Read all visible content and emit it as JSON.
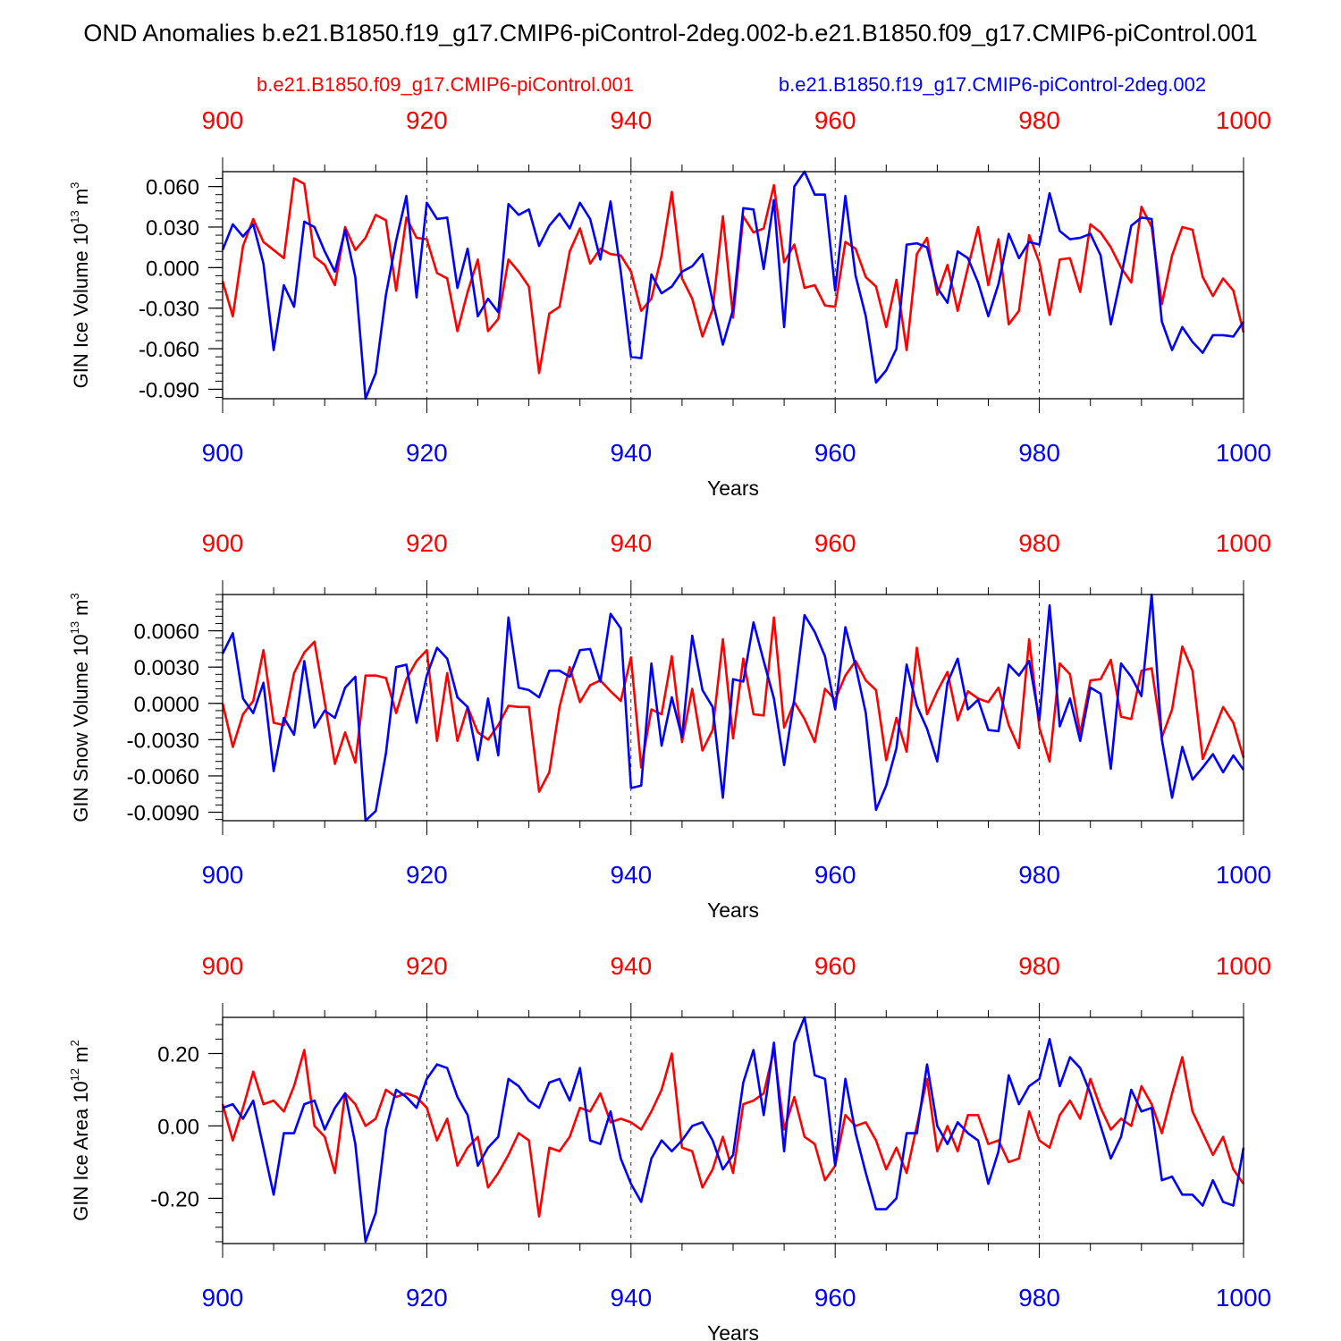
{
  "title": "OND Anomalies b.e21.B1850.f19_g17.CMIP6-piControl-2deg.002-b.e21.B1850.f09_g17.CMIP6-piControl.001",
  "legend": {
    "red_label": "b.e21.B1850.f09_g17.CMIP6-piControl.001",
    "blue_label": "b.e21.B1850.f19_g17.CMIP6-piControl-2deg.002"
  },
  "colors": {
    "red": "#ff0000",
    "blue": "#0000ff",
    "axis": "#000000"
  },
  "chart_data": [
    {
      "type": "line",
      "ylabel": {
        "prefix": "GIN Ice Volume 10",
        "exp1": "13",
        "mid": " m",
        "exp2": "3"
      },
      "xlabel": "Years",
      "xlim": [
        900,
        1000
      ],
      "ylim": [
        -0.097,
        0.071
      ],
      "xticks": [
        900,
        920,
        940,
        960,
        980,
        1000
      ],
      "xtick_labels": [
        "900",
        "920",
        "940",
        "960",
        "980",
        "1000"
      ],
      "yticks": [
        0.06,
        0.03,
        0.0,
        -0.03,
        -0.06,
        -0.09
      ],
      "ytick_labels": [
        "0.060",
        "0.030",
        "0.000",
        "-0.030",
        "-0.060",
        "-0.090"
      ],
      "yminor_step": 0.006,
      "series": [
        {
          "name": "b.e21.B1850.f09_g17.CMIP6-piControl.001",
          "color": "red",
          "values": [
            -0.01,
            -0.036,
            0.016,
            0.036,
            0.019,
            0.013,
            0.007,
            0.066,
            0.062,
            0.008,
            0.002,
            -0.013,
            0.03,
            0.013,
            0.022,
            0.039,
            0.035,
            -0.017,
            0.037,
            0.022,
            0.021,
            -0.004,
            -0.008,
            -0.047,
            -0.018,
            0.006,
            -0.047,
            -0.038,
            0.006,
            -0.003,
            -0.014,
            -0.078,
            -0.034,
            -0.029,
            0.012,
            0.029,
            0.003,
            0.014,
            0.01,
            0.009,
            -0.003,
            -0.032,
            -0.023,
            0.009,
            0.056,
            -0.008,
            -0.023,
            -0.051,
            -0.031,
            0.038,
            -0.037,
            0.038,
            0.026,
            0.029,
            0.061,
            0.004,
            0.017,
            -0.015,
            -0.013,
            -0.028,
            -0.029,
            0.019,
            0.014,
            -0.007,
            -0.014,
            -0.044,
            -0.009,
            -0.061,
            0.01,
            0.022,
            -0.02,
            0.002,
            -0.032,
            0.0,
            0.03,
            -0.013,
            0.021,
            -0.042,
            -0.032,
            0.024,
            0.004,
            -0.035,
            0.006,
            0.007,
            -0.018,
            0.032,
            0.026,
            0.015,
            0.0,
            -0.011,
            0.045,
            0.03,
            -0.027,
            0.009,
            0.03,
            0.028,
            -0.007,
            -0.021,
            -0.008,
            -0.017,
            -0.048
          ]
        },
        {
          "name": "b.e21.B1850.f19_g17.CMIP6-piControl-2deg.002",
          "color": "blue",
          "values": [
            0.013,
            0.032,
            0.023,
            0.032,
            0.003,
            -0.061,
            -0.013,
            -0.029,
            0.034,
            0.03,
            0.012,
            -0.003,
            0.028,
            -0.007,
            -0.097,
            -0.078,
            -0.02,
            0.02,
            0.053,
            -0.022,
            0.048,
            0.036,
            0.037,
            -0.015,
            0.014,
            -0.036,
            -0.023,
            -0.033,
            0.047,
            0.039,
            0.043,
            0.016,
            0.031,
            0.04,
            0.029,
            0.048,
            0.036,
            0.006,
            0.049,
            -0.003,
            -0.066,
            -0.067,
            -0.005,
            -0.019,
            -0.014,
            -0.003,
            0.001,
            0.01,
            -0.025,
            -0.057,
            -0.031,
            0.044,
            0.043,
            -0.001,
            0.05,
            -0.044,
            0.06,
            0.071,
            0.054,
            0.054,
            -0.017,
            0.053,
            -0.006,
            -0.036,
            -0.085,
            -0.076,
            -0.06,
            0.017,
            0.018,
            0.015,
            -0.015,
            -0.026,
            0.012,
            0.007,
            -0.011,
            -0.036,
            -0.012,
            0.025,
            0.007,
            0.019,
            0.017,
            0.055,
            0.027,
            0.021,
            0.022,
            0.025,
            0.009,
            -0.042,
            -0.007,
            0.031,
            0.037,
            0.036,
            -0.04,
            -0.061,
            -0.044,
            -0.055,
            -0.063,
            -0.05,
            -0.05,
            -0.051,
            -0.04
          ]
        }
      ]
    },
    {
      "type": "line",
      "ylabel": {
        "prefix": "GIN Snow Volume 10",
        "exp1": "13",
        "mid": " m",
        "exp2": "3"
      },
      "xlabel": "Years",
      "xlim": [
        900,
        1000
      ],
      "ylim": [
        -0.0097,
        0.009
      ],
      "xticks": [
        900,
        920,
        940,
        960,
        980,
        1000
      ],
      "xtick_labels": [
        "900",
        "920",
        "940",
        "960",
        "980",
        "1000"
      ],
      "yticks": [
        0.006,
        0.003,
        0.0,
        -0.003,
        -0.006,
        -0.009
      ],
      "ytick_labels": [
        "0.0060",
        "0.0030",
        "0.0000",
        "-0.0030",
        "-0.0060",
        "-0.0090"
      ],
      "yminor_step": 0.0006,
      "series": [
        {
          "name": "b.e21.B1850.f09_g17.CMIP6-piControl.001",
          "color": "red",
          "values": [
            0.0,
            -0.0036,
            -0.0009,
            0.0002,
            0.0044,
            -0.0016,
            -0.0018,
            0.0025,
            0.0042,
            0.0051,
            0.0001,
            -0.005,
            -0.0024,
            -0.0049,
            0.0023,
            0.0023,
            0.0021,
            -0.0008,
            0.002,
            0.0035,
            0.0044,
            -0.0031,
            0.0025,
            -0.0031,
            -0.0003,
            -0.0024,
            -0.003,
            -0.0018,
            -0.0002,
            -0.0003,
            -0.0003,
            -0.0073,
            -0.0057,
            -0.0003,
            0.003,
            0.0001,
            0.0015,
            0.0019,
            0.001,
            0.0002,
            0.0038,
            -0.0053,
            -0.0005,
            -0.0009,
            0.0039,
            -0.0032,
            0.0012,
            -0.0039,
            -0.0022,
            0.0053,
            -0.0029,
            0.0037,
            -0.0009,
            -0.001,
            0.0071,
            -0.002,
            0.0001,
            -0.0013,
            -0.0032,
            0.0012,
            0.0003,
            0.0023,
            0.0035,
            0.0019,
            0.0011,
            -0.0047,
            -0.0012,
            -0.004,
            0.0046,
            -0.0009,
            0.001,
            0.0026,
            -0.0014,
            0.001,
            0.0004,
            0.0001,
            0.0013,
            -0.0018,
            -0.0037,
            0.0053,
            -0.002,
            -0.0048,
            0.0033,
            0.0024,
            -0.0025,
            0.0019,
            0.002,
            0.0036,
            -0.0011,
            -0.0013,
            0.0027,
            0.0029,
            -0.0028,
            -0.0005,
            0.0047,
            0.0027,
            -0.0046,
            -0.0025,
            -0.0003,
            -0.0016,
            -0.0045
          ]
        },
        {
          "name": "b.e21.B1850.f19_g17.CMIP6-piControl-2deg.002",
          "color": "blue",
          "values": [
            0.0041,
            0.0058,
            0.0004,
            -0.0008,
            0.0017,
            -0.0056,
            -0.0012,
            -0.0026,
            0.0035,
            -0.002,
            -0.0006,
            -0.0012,
            0.0013,
            0.0022,
            -0.0097,
            -0.0089,
            -0.0041,
            0.003,
            0.0032,
            -0.0016,
            0.0023,
            0.0046,
            0.0037,
            0.0005,
            -0.0003,
            -0.0047,
            0.0004,
            -0.0043,
            0.0071,
            0.0013,
            0.0011,
            0.0005,
            0.0027,
            0.0027,
            0.0022,
            0.0044,
            0.0045,
            0.0018,
            0.0074,
            0.0062,
            -0.007,
            -0.0068,
            0.0033,
            -0.0035,
            0.0005,
            -0.0028,
            0.0056,
            0.0011,
            -0.0003,
            -0.0078,
            0.002,
            0.0018,
            0.0067,
            0.0035,
            0.0004,
            -0.0051,
            0.0004,
            0.0073,
            0.0059,
            0.0039,
            -0.0005,
            0.0063,
            0.0031,
            -0.0008,
            -0.0088,
            -0.0068,
            -0.0037,
            0.0032,
            -0.0002,
            -0.0021,
            -0.0048,
            0.0017,
            0.0037,
            -0.0005,
            0.0003,
            -0.0022,
            -0.0023,
            0.0032,
            0.0023,
            0.0035,
            -0.0014,
            0.0081,
            -0.0019,
            0.0004,
            -0.0031,
            0.0013,
            0.0008,
            -0.0054,
            0.0033,
            0.0022,
            0.0006,
            0.009,
            -0.003,
            -0.0078,
            -0.0036,
            -0.0063,
            -0.0053,
            -0.0042,
            -0.0057,
            -0.0043,
            -0.0055
          ]
        }
      ]
    },
    {
      "type": "line",
      "ylabel": {
        "prefix": "GIN Ice Area 10",
        "exp1": "12",
        "mid": " m",
        "exp2": "2"
      },
      "xlabel": "Years",
      "xlim": [
        900,
        1000
      ],
      "ylim": [
        -0.325,
        0.3
      ],
      "xticks": [
        900,
        920,
        940,
        960,
        980,
        1000
      ],
      "xtick_labels": [
        "900",
        "920",
        "940",
        "960",
        "980",
        "1000"
      ],
      "yticks": [
        0.2,
        0.0,
        -0.2
      ],
      "ytick_labels": [
        "0.20",
        "0.00",
        "-0.20"
      ],
      "yminor_step": 0.04,
      "series": [
        {
          "name": "b.e21.B1850.f09_g17.CMIP6-piControl.001",
          "color": "red",
          "values": [
            0.06,
            -0.04,
            0.05,
            0.15,
            0.06,
            0.07,
            0.04,
            0.11,
            0.21,
            0.0,
            -0.03,
            -0.13,
            0.09,
            0.06,
            0.0,
            0.02,
            0.1,
            0.08,
            0.09,
            0.08,
            0.05,
            -0.04,
            0.02,
            -0.11,
            -0.06,
            -0.03,
            -0.17,
            -0.13,
            -0.08,
            -0.02,
            -0.04,
            -0.25,
            -0.06,
            -0.07,
            -0.03,
            0.05,
            0.04,
            0.09,
            0.01,
            0.02,
            0.01,
            -0.01,
            0.04,
            0.1,
            0.2,
            -0.06,
            -0.07,
            -0.17,
            -0.12,
            -0.03,
            -0.13,
            0.06,
            0.07,
            0.09,
            0.21,
            -0.01,
            0.08,
            -0.03,
            -0.05,
            -0.15,
            -0.11,
            0.03,
            0.0,
            0.01,
            -0.04,
            -0.12,
            -0.06,
            -0.13,
            0.0,
            0.13,
            -0.07,
            0.0,
            -0.07,
            0.03,
            0.03,
            -0.05,
            -0.04,
            -0.1,
            -0.09,
            0.04,
            -0.04,
            -0.06,
            0.03,
            0.07,
            0.02,
            0.13,
            0.05,
            -0.01,
            0.02,
            0.0,
            0.11,
            0.06,
            -0.02,
            0.09,
            0.19,
            0.04,
            -0.02,
            -0.08,
            -0.03,
            -0.12,
            -0.16
          ]
        },
        {
          "name": "b.e21.B1850.f19_g17.CMIP6-piControl-2deg.002",
          "color": "blue",
          "values": [
            0.05,
            0.06,
            0.02,
            0.07,
            -0.06,
            -0.19,
            -0.02,
            -0.02,
            0.06,
            0.07,
            -0.01,
            0.05,
            0.09,
            -0.05,
            -0.32,
            -0.24,
            -0.01,
            0.1,
            0.08,
            0.05,
            0.13,
            0.17,
            0.16,
            0.08,
            0.03,
            -0.11,
            -0.06,
            -0.03,
            0.13,
            0.11,
            0.07,
            0.05,
            0.12,
            0.13,
            0.07,
            0.16,
            -0.04,
            -0.05,
            0.04,
            -0.09,
            -0.16,
            -0.21,
            -0.09,
            -0.04,
            -0.07,
            -0.04,
            0.0,
            0.01,
            -0.04,
            -0.12,
            -0.08,
            0.12,
            0.21,
            0.03,
            0.23,
            -0.07,
            0.23,
            0.3,
            0.14,
            0.13,
            -0.11,
            0.13,
            -0.02,
            -0.13,
            -0.23,
            -0.23,
            -0.2,
            -0.02,
            -0.02,
            0.17,
            0.0,
            -0.05,
            0.01,
            -0.02,
            -0.04,
            -0.16,
            -0.07,
            0.14,
            0.06,
            0.11,
            0.13,
            0.24,
            0.11,
            0.19,
            0.16,
            0.09,
            0.0,
            -0.09,
            -0.03,
            0.1,
            0.04,
            0.05,
            -0.15,
            -0.14,
            -0.19,
            -0.19,
            -0.22,
            -0.15,
            -0.21,
            -0.22,
            -0.06
          ]
        }
      ]
    }
  ]
}
